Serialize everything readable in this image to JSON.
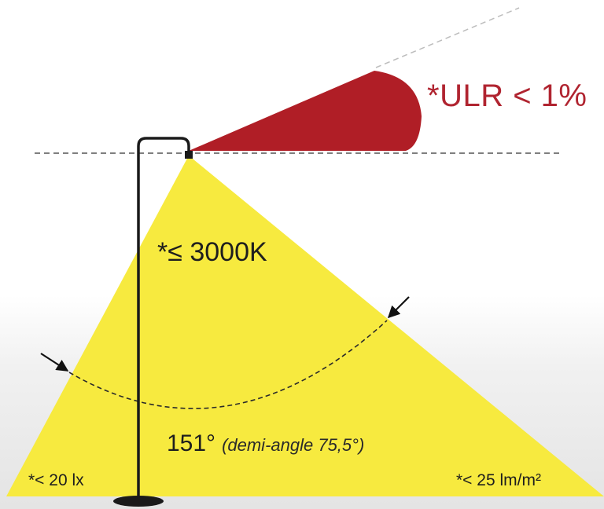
{
  "diagram": {
    "ulr_label": "*ULR < 1%",
    "color_temp_label": "*≤ 3000K",
    "beam_angle": "151°",
    "demi_angle_note": "(demi-angle 75,5°)",
    "illuminance_label": "*< 20 lx",
    "luminous_flux_label": "*< 25 lm/m²",
    "colors": {
      "light_cone": "#f7ea3f",
      "uplight": "#b01e26",
      "pole": "#1a1a1a",
      "guide_line": "#444444",
      "ulr_text": "#b02430"
    }
  }
}
